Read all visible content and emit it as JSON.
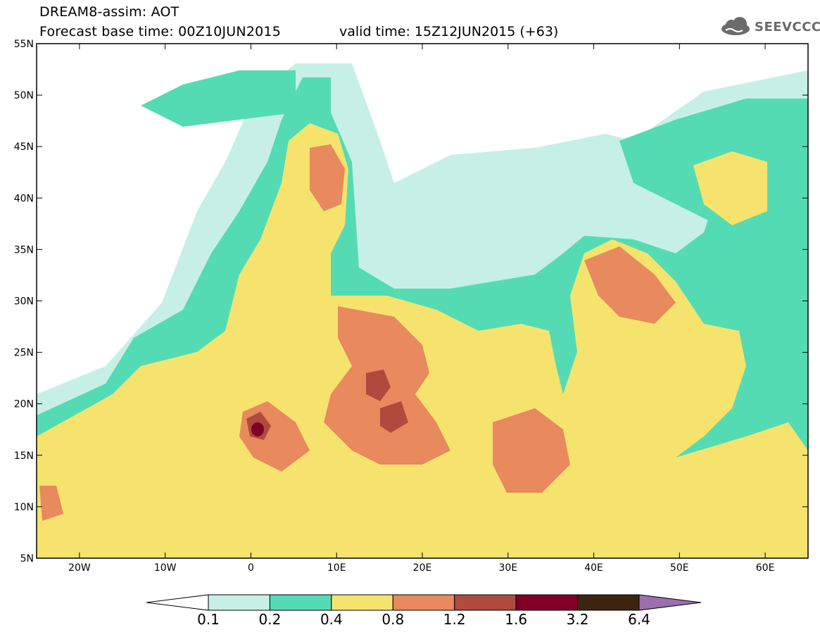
{
  "header": {
    "model_title": "DREAM8-assim: AOT",
    "base_time": "Forecast base time: 00Z10JUN2015",
    "valid_time": "valid time: 15Z12JUN2015 (+63)",
    "logo_text": "SEEVCCC",
    "logo_icon": "cloud-icon"
  },
  "map": {
    "lon_range": [
      -25,
      65
    ],
    "lat_range": [
      5,
      55
    ],
    "lon_ticks": [
      {
        "value": -20,
        "label": "20W"
      },
      {
        "value": -10,
        "label": "10W"
      },
      {
        "value": 0,
        "label": "0"
      },
      {
        "value": 10,
        "label": "10E"
      },
      {
        "value": 20,
        "label": "20E"
      },
      {
        "value": 30,
        "label": "30E"
      },
      {
        "value": 40,
        "label": "40E"
      },
      {
        "value": 50,
        "label": "50E"
      },
      {
        "value": 60,
        "label": "60E"
      }
    ],
    "lat_ticks": [
      {
        "value": 5,
        "label": "5N"
      },
      {
        "value": 10,
        "label": "10N"
      },
      {
        "value": 15,
        "label": "15N"
      },
      {
        "value": 20,
        "label": "20N"
      },
      {
        "value": 25,
        "label": "25N"
      },
      {
        "value": 30,
        "label": "30N"
      },
      {
        "value": 35,
        "label": "35N"
      },
      {
        "value": 40,
        "label": "40N"
      },
      {
        "value": 45,
        "label": "45N"
      },
      {
        "value": 50,
        "label": "50N"
      },
      {
        "value": 55,
        "label": "55N"
      }
    ]
  },
  "colorbar": {
    "colors": [
      "#ffffff",
      "#c6f0e6",
      "#55dbb4",
      "#f5e36e",
      "#e8895e",
      "#b04a3e",
      "#800028",
      "#3d2410",
      "#9c6fb0"
    ],
    "labels": [
      "0.1",
      "0.2",
      "0.4",
      "0.8",
      "1.2",
      "1.6",
      "3.2",
      "6.4"
    ]
  }
}
